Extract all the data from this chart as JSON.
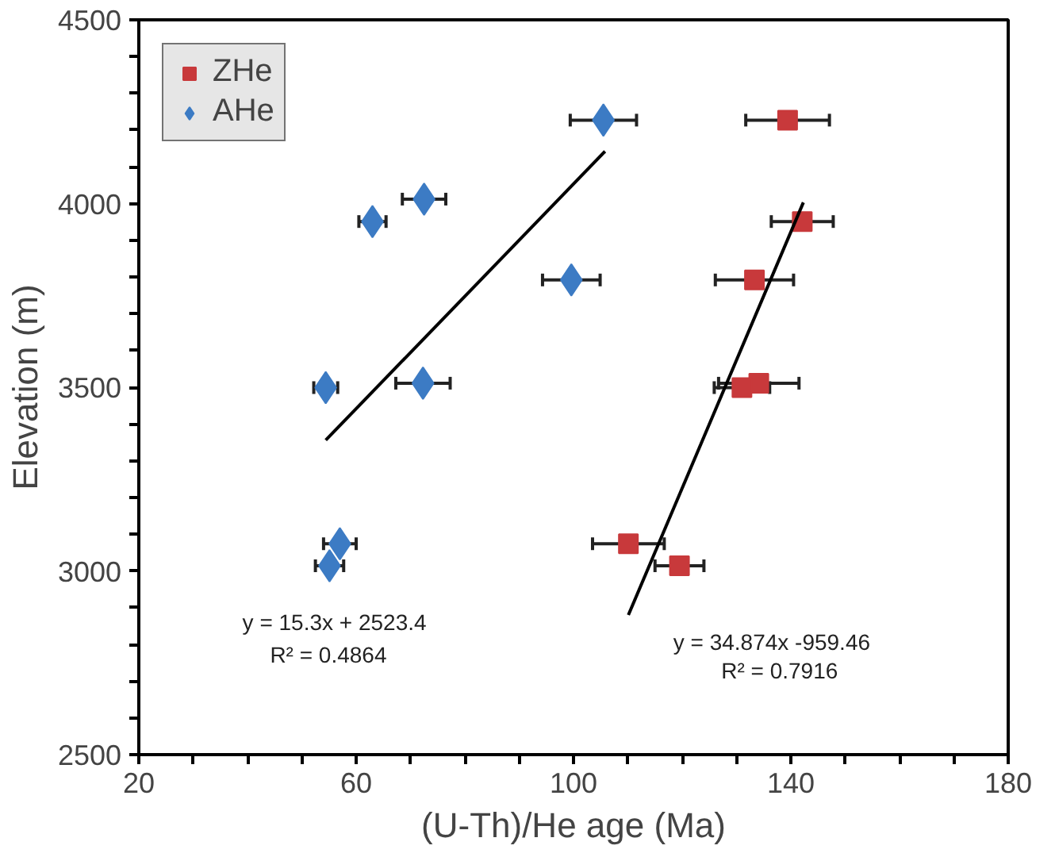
{
  "chart_data": {
    "type": "scatter",
    "xlabel": "(U-Th)/He age (Ma)",
    "ylabel": "Elevation (m)",
    "xlim": [
      20,
      180
    ],
    "ylim": [
      2500,
      4500
    ],
    "xticks": [
      20,
      {
        "value": 30,
        "label": null
      },
      {
        "value": 40,
        "label": null
      },
      {
        "value": 50,
        "label": null
      },
      60,
      {
        "value": 70,
        "label": null
      },
      {
        "value": 80,
        "label": null
      },
      {
        "value": 90,
        "label": null
      },
      100,
      {
        "value": 110,
        "label": null
      },
      {
        "value": 120,
        "label": null
      },
      {
        "value": 130,
        "label": null
      },
      140,
      {
        "value": 150,
        "label": null
      },
      {
        "value": 160,
        "label": null
      },
      {
        "value": 170,
        "label": null
      },
      180
    ],
    "yticks": [
      2500,
      {
        "value": 2600,
        "label": null
      },
      {
        "value": 2700,
        "label": null
      },
      {
        "value": 2800,
        "label": null
      },
      {
        "value": 2900,
        "label": null
      },
      3000,
      {
        "value": 3100,
        "label": null
      },
      {
        "value": 3200,
        "label": null
      },
      {
        "value": 3300,
        "label": null
      },
      {
        "value": 3400,
        "label": null
      },
      3500,
      {
        "value": 3600,
        "label": null
      },
      {
        "value": 3700,
        "label": null
      },
      {
        "value": 3800,
        "label": null
      },
      {
        "value": 3900,
        "label": null
      },
      4000,
      {
        "value": 4100,
        "label": null
      },
      {
        "value": 4200,
        "label": null
      },
      {
        "value": 4300,
        "label": null
      },
      {
        "value": 4400,
        "label": null
      },
      4500
    ],
    "grid": false,
    "legend": "top left",
    "series": [
      {
        "name": "ZHe",
        "color": "#c8393b",
        "marker": "square",
        "x": [
          139.4,
          142.1,
          133.3,
          134.1,
          131.0,
          110.1,
          119.5
        ],
        "values": [
          4227,
          3951,
          3792,
          3511,
          3499,
          3074,
          3014
        ],
        "xerrors": [
          7.7,
          5.7,
          7.2,
          7.4,
          5.1,
          6.6,
          4.5
        ]
      },
      {
        "name": "AHe",
        "color": "#3c7bc4",
        "marker": "diamond",
        "x": [
          105.5,
          72.5,
          63.0,
          99.6,
          54.4,
          72.3,
          57.0,
          55.1
        ],
        "values": [
          4227,
          4012,
          3951,
          3792,
          3499,
          3511,
          3074,
          3014
        ],
        "xerrors": [
          6.1,
          4.0,
          2.5,
          5.3,
          2.2,
          5.0,
          3.0,
          2.6
        ]
      },
      {
        "type": "line",
        "color": "#000000",
        "x": [
          54.4,
          105.8
        ],
        "values": [
          3356,
          4142
        ]
      },
      {
        "type": "line",
        "color": "#000000",
        "x": [
          110.1,
          142.3
        ],
        "values": [
          2880,
          4003
        ]
      }
    ],
    "annotations": [
      "y = 15.3x + 2523.4",
      "R² = 0.4864",
      "y = 34.874x -959.46",
      "R² = 0.7916"
    ]
  }
}
